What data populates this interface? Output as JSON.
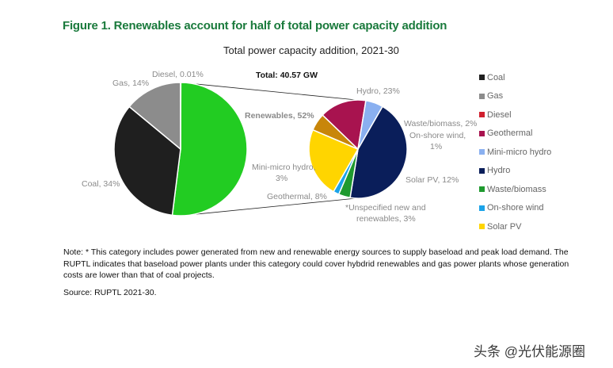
{
  "figure_title": "Figure 1. Renewables account for half of total power capacity addition",
  "note": "Note: * This category includes power generated from new and renewable energy sources to supply baseload and peak load demand. The RUPTL indicates that baseload power plants under this category could cover hybdrid renewables and gas power plants whose generation costs are lower than that of coal projects.",
  "source": "Source: RUPTL 2021-30.",
  "watermark": "头条 @光伏能源圈",
  "colors": {
    "coal": "#1f1f1f",
    "gas": "#8c8c8c",
    "diesel": "#d0202e",
    "renewables": "#22cc22",
    "geothermal": "#a8134f",
    "mini_micro_hydro": "#8ab0f0",
    "hydro": "#0a1e5a",
    "waste_biomass": "#1f9a2f",
    "on_shore_wind": "#1ba3e8",
    "solar_pv": "#ffd500",
    "unspecified": "#c8860a"
  },
  "chart_data": {
    "type": "pie",
    "title": "Total power capacity addition, 2021-30",
    "annotation": "Total: 40.57 GW",
    "pies": [
      {
        "name": "main",
        "slices": [
          {
            "key": "renewables",
            "label": "Renewables, 52%",
            "value": 52
          },
          {
            "key": "coal",
            "label": "Coal, 34%",
            "value": 34
          },
          {
            "key": "gas",
            "label": "Gas, 14%",
            "value": 14
          },
          {
            "key": "diesel",
            "label": "Diesel, 0.01%",
            "value": 0.01
          }
        ]
      },
      {
        "name": "renewables-breakdown",
        "slices": [
          {
            "key": "hydro",
            "label": "Hydro, 23%",
            "value": 23
          },
          {
            "key": "waste_biomass",
            "label": "Waste/biomass, 2%",
            "value": 2
          },
          {
            "key": "on_shore_wind",
            "label": "On-shore wind, 1%",
            "value": 1
          },
          {
            "key": "solar_pv",
            "label": "Solar PV, 12%",
            "value": 12
          },
          {
            "key": "unspecified",
            "label": "*Unspecified new and renewables, 3%",
            "value": 3
          },
          {
            "key": "geothermal",
            "label": "Geothermal, 8%",
            "value": 8
          },
          {
            "key": "mini_micro_hydro",
            "label": "Mini-micro hydro, 3%",
            "value": 3
          }
        ]
      }
    ],
    "legend": [
      {
        "key": "coal",
        "label": "Coal"
      },
      {
        "key": "gas",
        "label": "Gas"
      },
      {
        "key": "diesel",
        "label": "Diesel"
      },
      {
        "key": "geothermal",
        "label": "Geothermal"
      },
      {
        "key": "mini_micro_hydro",
        "label": "Mini-micro hydro"
      },
      {
        "key": "hydro",
        "label": "Hydro"
      },
      {
        "key": "waste_biomass",
        "label": "Waste/biomass"
      },
      {
        "key": "on_shore_wind",
        "label": "On-shore wind"
      },
      {
        "key": "solar_pv",
        "label": "Solar PV"
      }
    ],
    "legend_position": "right"
  }
}
